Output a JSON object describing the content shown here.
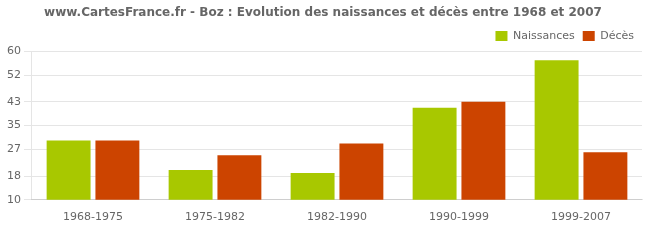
{
  "chart_data": {
    "type": "bar",
    "title": "www.CartesFrance.fr - Boz : Evolution des naissances et décès entre 1968 et 2007",
    "categories": [
      "1968-1975",
      "1975-1982",
      "1982-1990",
      "1990-1999",
      "1999-2007"
    ],
    "series": [
      {
        "name": "Naissances",
        "color": "#a8c800",
        "values": [
          30,
          20,
          19,
          41,
          57
        ]
      },
      {
        "name": "Décès",
        "color": "#cc4400",
        "values": [
          30,
          25,
          29,
          43,
          26
        ]
      }
    ],
    "ylim": [
      10,
      60
    ],
    "yticks": [
      10,
      18,
      27,
      35,
      43,
      52,
      60
    ],
    "grid": true,
    "legend": "upper right"
  }
}
